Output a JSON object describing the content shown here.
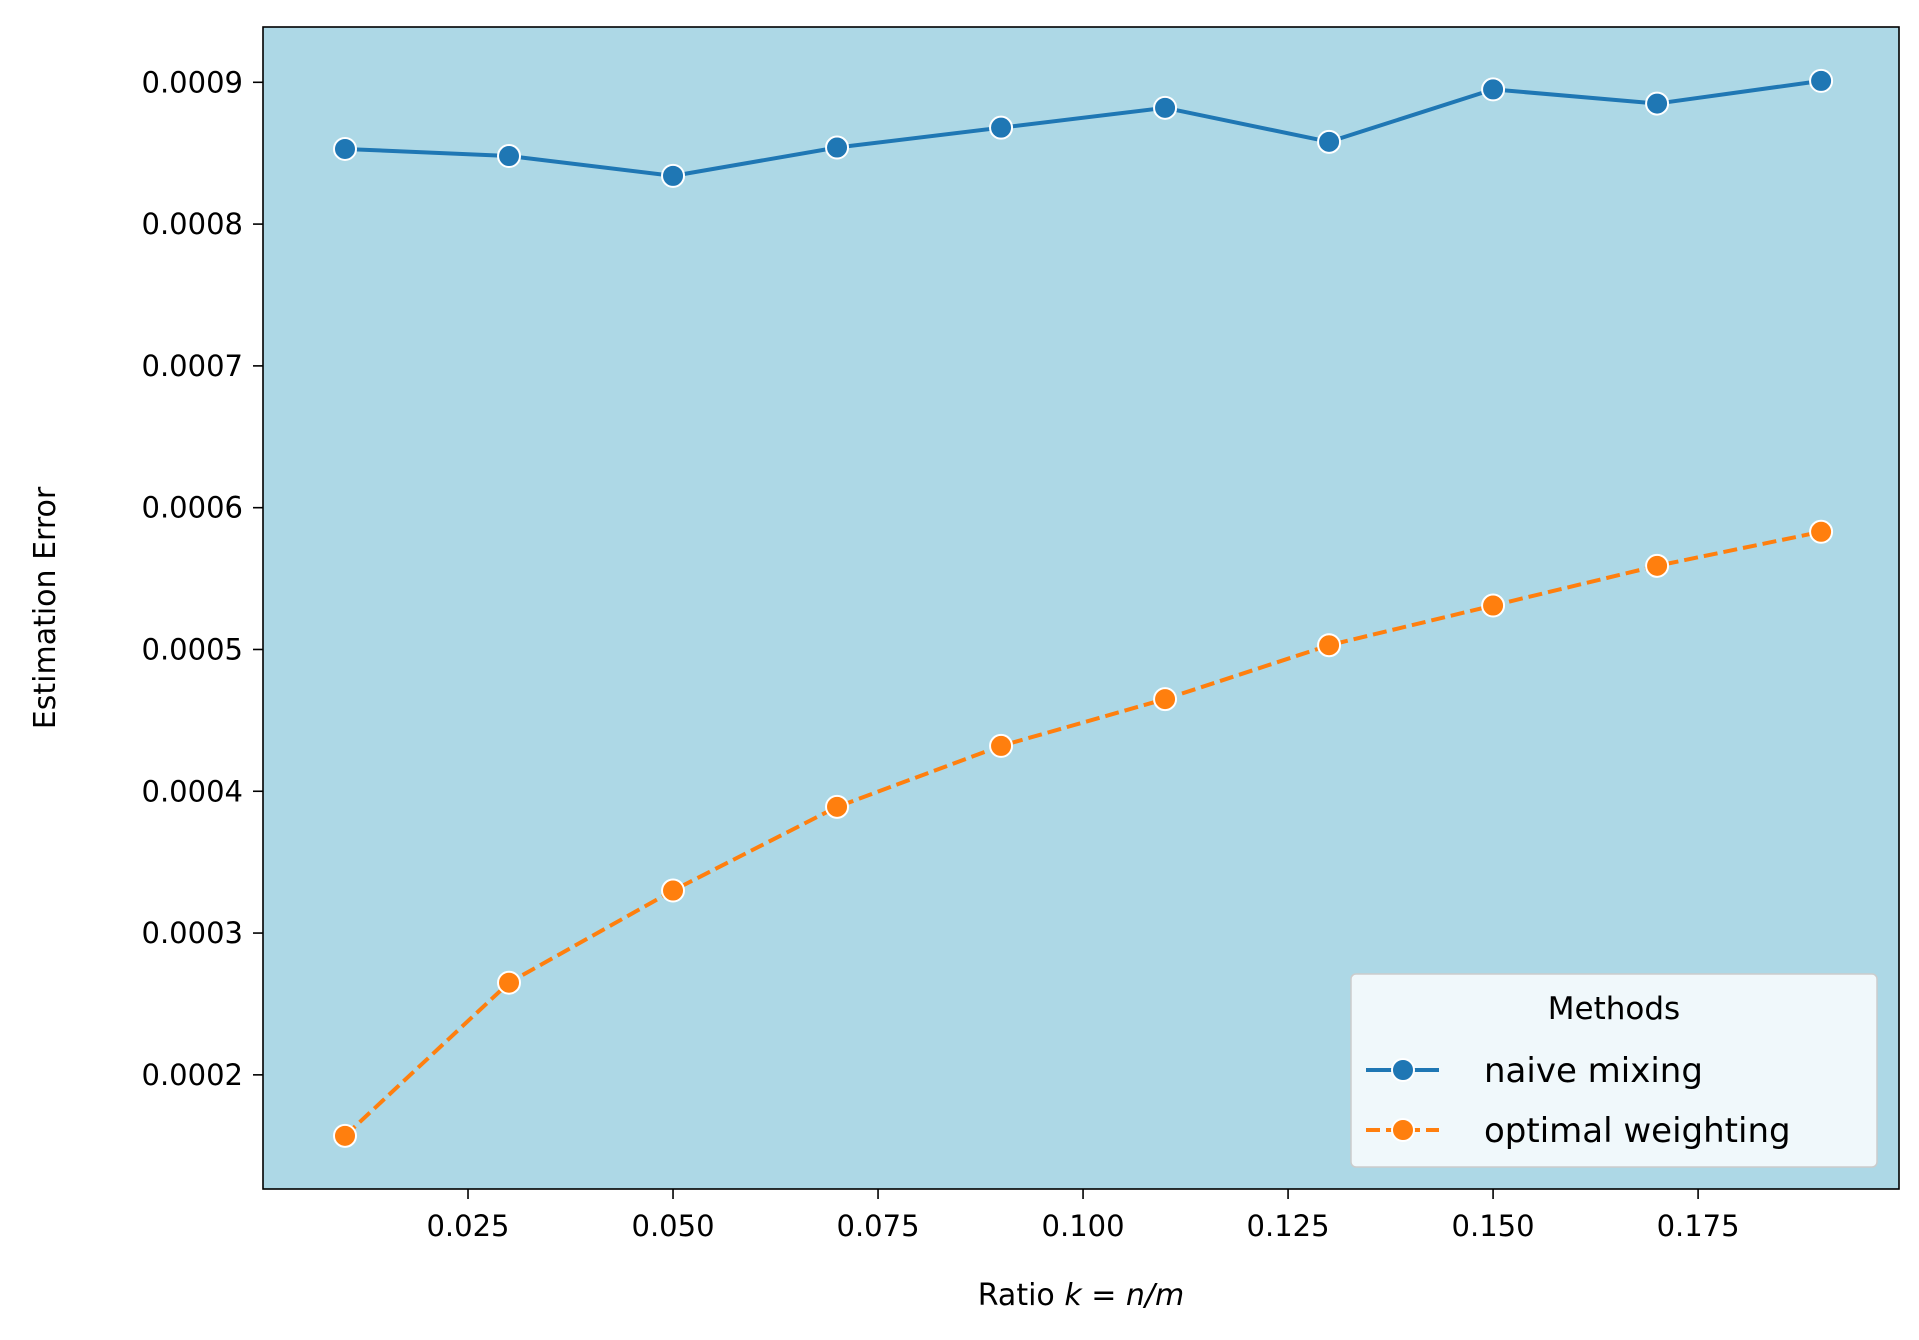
{
  "chart_data": {
    "type": "line",
    "xlabel_prefix": "Ratio ",
    "xlabel_math": "k = n/m",
    "ylabel": "Estimation Error",
    "xlim": [
      0.0,
      0.1995
    ],
    "ylim": [
      0.0001195,
      0.000939
    ],
    "x_ticks": [
      0.025,
      0.05,
      0.075,
      0.1,
      0.125,
      0.15,
      0.175
    ],
    "x_tick_labels": [
      "0.025",
      "0.050",
      "0.075",
      "0.100",
      "0.125",
      "0.150",
      "0.175"
    ],
    "y_ticks": [
      0.0002,
      0.0003,
      0.0004,
      0.0005,
      0.0006,
      0.0007,
      0.0008,
      0.0009
    ],
    "y_tick_labels": [
      "0.0002",
      "0.0003",
      "0.0004",
      "0.0005",
      "0.0006",
      "0.0007",
      "0.0008",
      "0.0009"
    ],
    "x": [
      0.01,
      0.03,
      0.05,
      0.07,
      0.09,
      0.11,
      0.13,
      0.15,
      0.17,
      0.19
    ],
    "series": [
      {
        "name": "naive mixing",
        "color": "#1f77b4",
        "dash": "solid",
        "values": [
          0.000853,
          0.000848,
          0.000834,
          0.000854,
          0.000868,
          0.000882,
          0.000858,
          0.000895,
          0.000885,
          0.000901
        ]
      },
      {
        "name": "optimal weighting",
        "color": "#ff7f0e",
        "dash": "dashed",
        "values": [
          0.000157,
          0.000265,
          0.00033,
          0.000389,
          0.000432,
          0.000465,
          0.000503,
          0.000531,
          0.000559,
          0.000583
        ]
      }
    ],
    "legend": {
      "title": "Methods",
      "placement": "lower-right"
    },
    "grid": false,
    "plot_background": "#add8e6"
  }
}
